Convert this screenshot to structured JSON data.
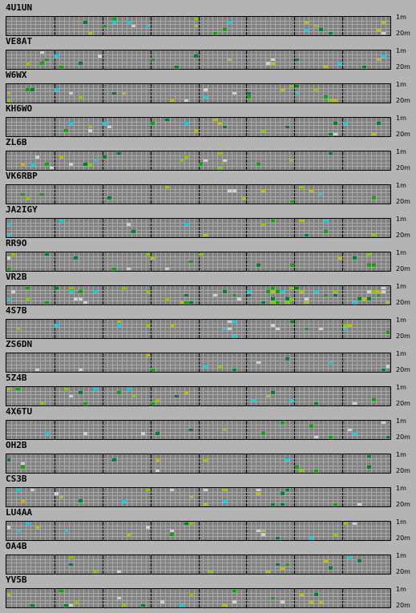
{
  "colors": {
    "background": "#b4b4b4",
    "grid_bg": "#818181",
    "grid_lines": "#a9a9a9",
    "hour_lines": "#000000",
    "spot_green": "#1a9e1a",
    "spot_dark_green": "#0a7a3a",
    "spot_olive": "#b8b82a",
    "spot_cyan": "#20c8d8",
    "spot_light": "#d0d0d0",
    "spot_yellow_green": "#8ec21a"
  },
  "axis": {
    "top_label": "1m",
    "bottom_label": "20m"
  },
  "stations": [
    {
      "callsign": "4U1UN"
    },
    {
      "callsign": "VE8AT"
    },
    {
      "callsign": "W6WX"
    },
    {
      "callsign": "KH6WO"
    },
    {
      "callsign": "ZL6B"
    },
    {
      "callsign": "VK6RBP"
    },
    {
      "callsign": "JA2IGY"
    },
    {
      "callsign": "RR9O"
    },
    {
      "callsign": "VR2B"
    },
    {
      "callsign": "4S7B"
    },
    {
      "callsign": "ZS6DN"
    },
    {
      "callsign": "5Z4B"
    },
    {
      "callsign": "4X6TU"
    },
    {
      "callsign": "OH2B"
    },
    {
      "callsign": "CS3B"
    },
    {
      "callsign": "LU4AA"
    },
    {
      "callsign": "OA4B"
    },
    {
      "callsign": "YV5B"
    }
  ]
}
